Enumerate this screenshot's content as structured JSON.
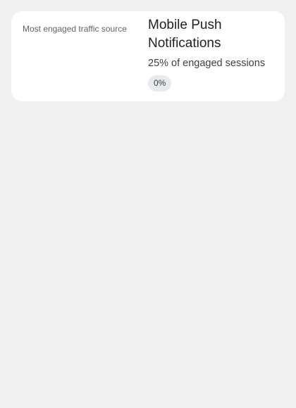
{
  "card": {
    "label": "Most engaged traffic source",
    "title": "Mobile Push Notifications",
    "subtitle": "25% of engaged sessions",
    "badge": "0%"
  },
  "colors": {
    "page_background": "#f0f0f0",
    "card_background": "#ffffff",
    "badge_background": "#e8eaed"
  }
}
